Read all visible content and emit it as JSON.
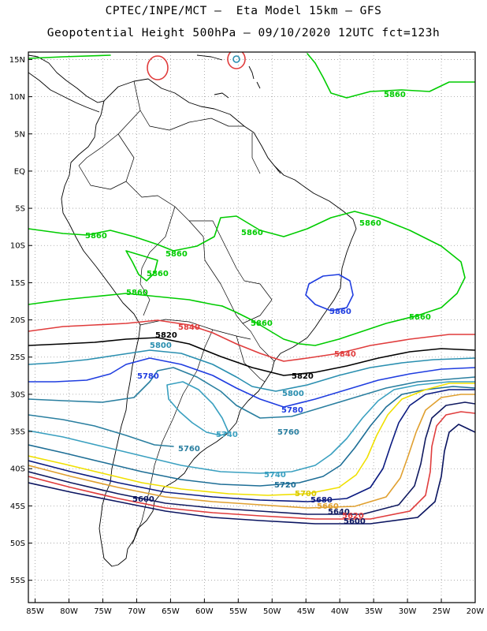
{
  "header": {
    "line1": "CPTEC/INPE/MCT –  Eta Model 15km – GFS",
    "line2": "Geopotential Height 500hPa – 09/10/2020 12UTC fct=123h"
  },
  "map": {
    "lat_labels": [
      "15N",
      "10N",
      "5N",
      "EQ",
      "5S",
      "10S",
      "15S",
      "20S",
      "25S",
      "30S",
      "35S",
      "40S",
      "45S",
      "50S",
      "55S"
    ],
    "lon_labels": [
      "85W",
      "80W",
      "75W",
      "70W",
      "65W",
      "60W",
      "55W",
      "50W",
      "45W",
      "40W",
      "35W",
      "30W",
      "25W",
      "20W"
    ],
    "lat_range": [
      -58,
      16
    ],
    "lon_range": [
      -86,
      -20
    ],
    "gridlines": "dotted"
  },
  "contours": [
    {
      "value": 5860,
      "label": "5860",
      "color": "#00cc00"
    },
    {
      "value": 5840,
      "label": "5840",
      "color": "#e03c3c"
    },
    {
      "value": 5820,
      "label": "5820",
      "color": "#000000"
    },
    {
      "value": 5800,
      "label": "5800",
      "color": "#2a8fb0"
    },
    {
      "value": 5780,
      "label": "5780",
      "color": "#1f3de0"
    },
    {
      "value": 5760,
      "label": "5760",
      "color": "#2a7fa0"
    },
    {
      "value": 5740,
      "label": "5740",
      "color": "#3aa0c0"
    },
    {
      "value": 5720,
      "label": "5720",
      "color": "#1e6e96"
    },
    {
      "value": 5700,
      "label": "5700",
      "color": "#f0e000"
    },
    {
      "value": 5680,
      "label": "5680",
      "color": "#0a1a80"
    },
    {
      "value": 5660,
      "label": "5660",
      "color": "#e0a030"
    },
    {
      "value": 5640,
      "label": "5640",
      "color": "#101a60"
    },
    {
      "value": 5620,
      "label": "5620",
      "color": "#e03c3c"
    },
    {
      "value": 5600,
      "label": "5600",
      "color": "#0a1460"
    }
  ]
}
